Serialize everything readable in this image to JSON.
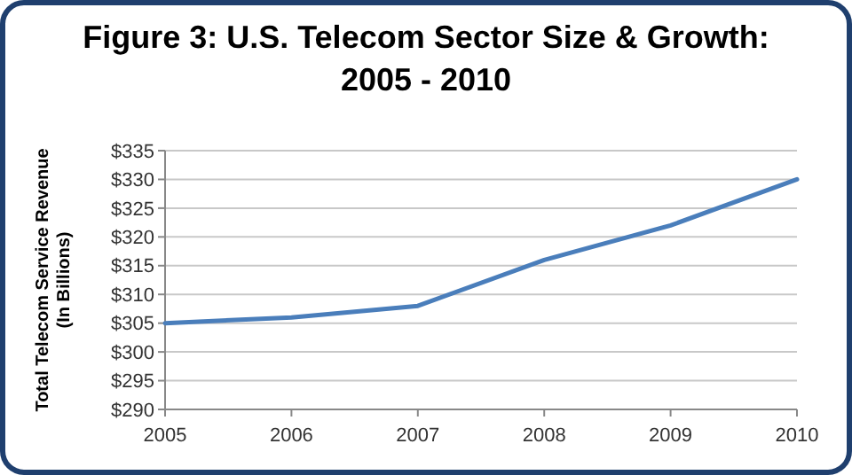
{
  "chart_data": {
    "type": "line",
    "title": "Figure 3: U.S. Telecom Sector Size & Growth: 2005 - 2010",
    "ylabel": "Total Telecom Service Revenue (In Billions)",
    "x": [
      2005,
      2006,
      2007,
      2008,
      2009,
      2010
    ],
    "series": [
      {
        "color": "#4a7ebb",
        "values": [
          305,
          306,
          308,
          316,
          322,
          330
        ]
      }
    ],
    "xlim": [
      2005,
      2010
    ],
    "xticks": [
      2005,
      2006,
      2007,
      2008,
      2009,
      2010
    ],
    "ylim": [
      290,
      335
    ],
    "yticks": [
      {
        "value": 290,
        "label": "$290"
      },
      {
        "value": 295,
        "label": "$295"
      },
      {
        "value": 300,
        "label": "$300"
      },
      {
        "value": 305,
        "label": "$305"
      },
      {
        "value": 310,
        "label": "$310"
      },
      {
        "value": 315,
        "label": "$315"
      },
      {
        "value": 320,
        "label": "$320"
      },
      {
        "value": 325,
        "label": "$325"
      },
      {
        "value": 330,
        "label": "$330"
      },
      {
        "value": 335,
        "label": "$335"
      }
    ],
    "grid": "y",
    "marker": "none",
    "line_style": "solid"
  }
}
